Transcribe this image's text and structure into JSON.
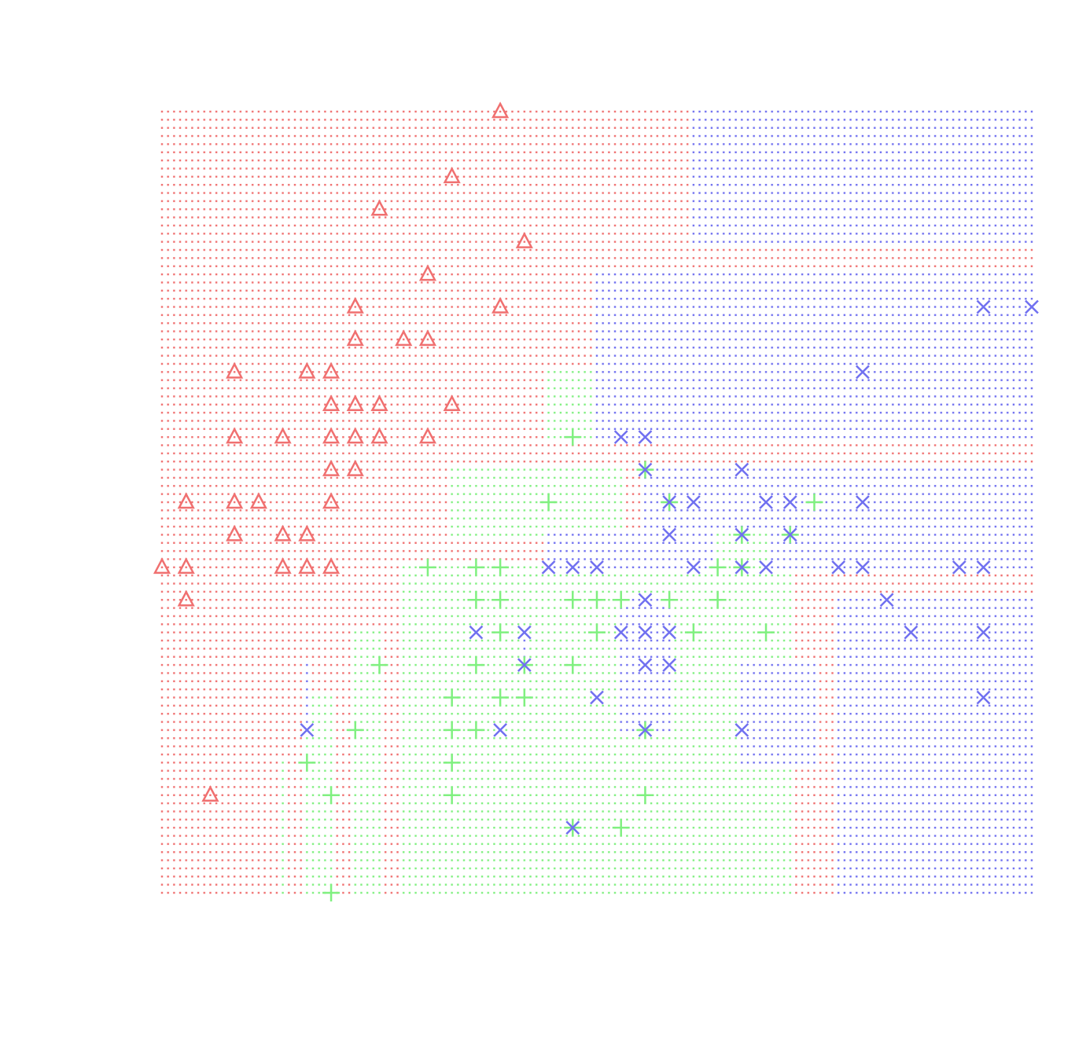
{
  "chart_data": {
    "type": "scatter",
    "xlim": [
      4.3,
      7.9
    ],
    "ylim": [
      2.0,
      4.4
    ],
    "series": [
      {
        "color": "#f07070",
        "marker": "triangle",
        "x": [
          5.7,
          5.5,
          5.2,
          5.8,
          5.4,
          5.1,
          5.7,
          5.1,
          5.3,
          5.4,
          4.6,
          4.9,
          5.0,
          5.0,
          5.1,
          5.2,
          5.5,
          4.6,
          4.8,
          5.0,
          5.1,
          5.2,
          5.4,
          5.0,
          5.1,
          4.4,
          4.6,
          4.7,
          5.0,
          4.6,
          4.8,
          4.9,
          4.3,
          4.4,
          4.8,
          4.9,
          5.0,
          4.4,
          4.5
        ],
        "values": [
          4.4,
          4.2,
          4.1,
          4.0,
          3.9,
          3.8,
          3.8,
          3.7,
          3.7,
          3.7,
          3.6,
          3.6,
          3.6,
          3.5,
          3.5,
          3.5,
          3.5,
          3.4,
          3.4,
          3.4,
          3.4,
          3.4,
          3.4,
          3.3,
          3.3,
          3.2,
          3.2,
          3.2,
          3.2,
          3.1,
          3.1,
          3.1,
          3.0,
          3.0,
          3.0,
          3.0,
          3.0,
          2.9,
          2.3
        ]
      },
      {
        "color": "#80f080",
        "marker": "plus",
        "x": [
          6.0,
          6.3,
          5.9,
          6.4,
          7.0,
          6.7,
          6.9,
          5.4,
          5.6,
          5.7,
          6.6,
          6.7,
          5.6,
          5.7,
          6.0,
          6.1,
          6.2,
          6.4,
          6.6,
          5.7,
          6.1,
          6.5,
          6.8,
          5.2,
          5.6,
          5.8,
          6.0,
          5.5,
          5.7,
          5.8,
          5.1,
          5.5,
          5.6,
          6.3,
          4.9,
          5.5,
          5.0,
          5.5,
          6.3,
          6.0,
          6.2,
          5.0
        ],
        "values": [
          3.4,
          3.3,
          3.2,
          3.2,
          3.2,
          3.1,
          3.1,
          3.0,
          3.0,
          3.0,
          3.0,
          3.0,
          2.9,
          2.9,
          2.9,
          2.9,
          2.9,
          2.9,
          2.9,
          2.8,
          2.8,
          2.8,
          2.8,
          2.7,
          2.7,
          2.7,
          2.7,
          2.6,
          2.6,
          2.6,
          2.5,
          2.5,
          2.5,
          2.5,
          2.4,
          2.4,
          2.3,
          2.3,
          2.3,
          2.2,
          2.2,
          2.0
        ]
      },
      {
        "color": "#7070f0",
        "marker": "cross",
        "x": [
          7.7,
          7.9,
          7.2,
          6.2,
          6.3,
          6.3,
          6.7,
          6.4,
          6.5,
          6.8,
          6.9,
          7.2,
          6.4,
          6.7,
          6.9,
          5.9,
          6.0,
          6.1,
          6.5,
          6.7,
          6.8,
          7.1,
          7.2,
          7.6,
          7.7,
          6.3,
          7.3,
          5.6,
          5.8,
          6.2,
          6.3,
          6.4,
          7.4,
          7.7,
          5.8,
          6.3,
          6.4,
          6.1,
          7.7,
          4.9,
          5.7,
          6.3,
          6.7,
          6.0
        ],
        "values": [
          3.8,
          3.8,
          3.6,
          3.4,
          3.4,
          3.3,
          3.3,
          3.2,
          3.2,
          3.2,
          3.2,
          3.2,
          3.1,
          3.1,
          3.1,
          3.0,
          3.0,
          3.0,
          3.0,
          3.0,
          3.0,
          3.0,
          3.0,
          3.0,
          3.0,
          2.9,
          2.9,
          2.8,
          2.8,
          2.8,
          2.8,
          2.8,
          2.8,
          2.8,
          2.7,
          2.7,
          2.7,
          2.6,
          2.6,
          2.5,
          2.5,
          2.5,
          2.5,
          2.2
        ]
      }
    ],
    "regions": [
      {
        "series": 0,
        "x": [
          4.3,
          7.9
        ],
        "y": [
          2.0,
          4.4
        ]
      },
      {
        "series": 1,
        "x": [
          5.3,
          6.9
        ],
        "y": [
          2.0,
          3.0
        ]
      },
      {
        "series": 1,
        "x": [
          5.1,
          5.2
        ],
        "y": [
          2.0,
          2.8
        ]
      },
      {
        "series": 1,
        "x": [
          4.9,
          5.0
        ],
        "y": [
          2.0,
          2.6
        ]
      },
      {
        "series": 1,
        "x": [
          4.8,
          4.8
        ],
        "y": [
          2.0,
          2.4
        ]
      },
      {
        "series": 1,
        "x": [
          5.5,
          6.2
        ],
        "y": [
          3.1,
          3.3
        ]
      },
      {
        "series": 1,
        "x": [
          5.9,
          6.1
        ],
        "y": [
          3.4,
          3.6
        ]
      },
      {
        "series": 2,
        "x": [
          6.5,
          7.9
        ],
        "y": [
          4.0,
          4.4
        ]
      },
      {
        "series": 2,
        "x": [
          6.1,
          7.9
        ],
        "y": [
          3.4,
          3.9
        ]
      },
      {
        "series": 2,
        "x": [
          6.3,
          7.9
        ],
        "y": [
          3.1,
          3.3
        ]
      },
      {
        "series": 2,
        "x": [
          5.9,
          7.9
        ],
        "y": [
          3.0,
          3.1
        ]
      },
      {
        "series": 2,
        "x": [
          7.1,
          7.9
        ],
        "y": [
          2.0,
          2.9
        ]
      },
      {
        "series": 2,
        "x": [
          6.2,
          6.4
        ],
        "y": [
          2.5,
          2.9
        ]
      },
      {
        "series": 2,
        "x": [
          5.8,
          5.8
        ],
        "y": [
          2.7,
          2.8
        ]
      },
      {
        "series": 2,
        "x": [
          6.7,
          7.0
        ],
        "y": [
          2.4,
          2.7
        ]
      },
      {
        "series": 2,
        "x": [
          4.9,
          4.9
        ],
        "y": [
          2.5,
          2.7
        ]
      },
      {
        "series": 1,
        "x": [
          6.6,
          6.8
        ],
        "y": [
          2.8,
          3.1
        ]
      }
    ]
  }
}
